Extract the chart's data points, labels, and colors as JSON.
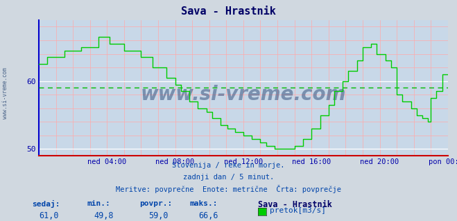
{
  "title": "Sava - Hrastnik",
  "bg_color": "#d0d8e0",
  "plot_bg_color": "#c8d8e8",
  "line_color": "#00cc00",
  "avg_line_color": "#00bb00",
  "avg_value": 59.0,
  "ymin": 49.0,
  "ymax": 69.0,
  "yticks": [
    50,
    60
  ],
  "tick_label_color": "#0000aa",
  "grid_color_v": "#ffaaaa",
  "grid_color_h": "#ffaaaa",
  "white_line_color": "#ffffff",
  "watermark": "www.si-vreme.com",
  "watermark_color": "#1a3a6a",
  "subtitle1": "Slovenija / reke in morje.",
  "subtitle2": "zadnji dan / 5 minut.",
  "subtitle3": "Meritve: povprečne  Enote: metrične  Črta: povprečje",
  "footer_labels": [
    "sedaj:",
    "min.:",
    "povpr.:",
    "maks.:"
  ],
  "footer_values": [
    "61,0",
    "49,8",
    "59,0",
    "66,6"
  ],
  "legend_label": "pretok[m3/s]",
  "legend_station": "Sava - Hrastnik",
  "text_color_blue": "#0044aa",
  "text_color_dark": "#000066",
  "sidebar_text": "www.si-vreme.com",
  "time_labels": [
    "ned 04:00",
    "ned 08:00",
    "ned 12:00",
    "ned 16:00",
    "ned 20:00",
    "pon 00:00"
  ],
  "xmin": 0,
  "xmax": 288,
  "flow_data": [
    [
      0,
      62.5
    ],
    [
      6,
      62.5
    ],
    [
      6,
      63.5
    ],
    [
      18,
      63.5
    ],
    [
      18,
      64.5
    ],
    [
      30,
      64.5
    ],
    [
      30,
      65.0
    ],
    [
      42,
      65.0
    ],
    [
      42,
      66.5
    ],
    [
      50,
      66.5
    ],
    [
      50,
      65.5
    ],
    [
      60,
      65.5
    ],
    [
      60,
      64.5
    ],
    [
      72,
      64.5
    ],
    [
      72,
      63.5
    ],
    [
      80,
      63.5
    ],
    [
      80,
      62.0
    ],
    [
      90,
      62.0
    ],
    [
      90,
      60.5
    ],
    [
      96,
      60.5
    ],
    [
      96,
      59.5
    ],
    [
      100,
      59.5
    ],
    [
      100,
      58.5
    ],
    [
      106,
      58.5
    ],
    [
      106,
      57.0
    ],
    [
      112,
      57.0
    ],
    [
      112,
      56.0
    ],
    [
      118,
      56.0
    ],
    [
      118,
      55.5
    ],
    [
      122,
      55.5
    ],
    [
      122,
      54.5
    ],
    [
      128,
      54.5
    ],
    [
      128,
      53.5
    ],
    [
      133,
      53.5
    ],
    [
      133,
      53.0
    ],
    [
      138,
      53.0
    ],
    [
      138,
      52.5
    ],
    [
      144,
      52.5
    ],
    [
      144,
      52.0
    ],
    [
      150,
      52.0
    ],
    [
      150,
      51.5
    ],
    [
      156,
      51.5
    ],
    [
      156,
      51.0
    ],
    [
      160,
      51.0
    ],
    [
      160,
      50.5
    ],
    [
      166,
      50.5
    ],
    [
      166,
      50.0
    ],
    [
      180,
      50.0
    ],
    [
      180,
      50.5
    ],
    [
      186,
      50.5
    ],
    [
      186,
      51.5
    ],
    [
      192,
      51.5
    ],
    [
      192,
      53.0
    ],
    [
      198,
      53.0
    ],
    [
      198,
      55.0
    ],
    [
      204,
      55.0
    ],
    [
      204,
      56.5
    ],
    [
      208,
      56.5
    ],
    [
      208,
      58.5
    ],
    [
      214,
      58.5
    ],
    [
      214,
      60.0
    ],
    [
      218,
      60.0
    ],
    [
      218,
      61.5
    ],
    [
      224,
      61.5
    ],
    [
      224,
      63.0
    ],
    [
      228,
      63.0
    ],
    [
      228,
      65.0
    ],
    [
      234,
      65.0
    ],
    [
      234,
      65.5
    ],
    [
      238,
      65.5
    ],
    [
      238,
      64.0
    ],
    [
      244,
      64.0
    ],
    [
      244,
      63.0
    ],
    [
      248,
      63.0
    ],
    [
      248,
      62.0
    ],
    [
      252,
      62.0
    ],
    [
      252,
      58.0
    ],
    [
      256,
      58.0
    ],
    [
      256,
      57.0
    ],
    [
      262,
      57.0
    ],
    [
      262,
      56.0
    ],
    [
      266,
      56.0
    ],
    [
      266,
      55.0
    ],
    [
      270,
      55.0
    ],
    [
      270,
      54.5
    ],
    [
      274,
      54.5
    ],
    [
      274,
      54.0
    ],
    [
      276,
      54.0
    ],
    [
      276,
      57.5
    ],
    [
      280,
      57.5
    ],
    [
      280,
      58.5
    ],
    [
      284,
      58.5
    ],
    [
      284,
      61.0
    ],
    [
      288,
      61.0
    ]
  ]
}
